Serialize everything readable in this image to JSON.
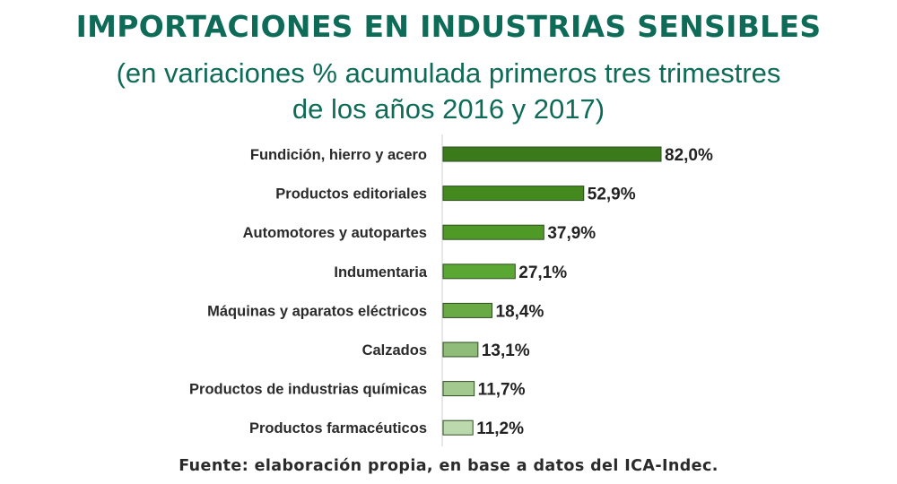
{
  "title": "IMPORTACIONES EN INDUSTRIAS SENSIBLES",
  "subtitle_lines": [
    "(en variaciones % acumulada primeros tres trimestres",
    "de los años 2016 y 2017)"
  ],
  "source": "Fuente: elaboración propia, en base a datos del ICA-Indec.",
  "chart_data": {
    "type": "bar",
    "orientation": "horizontal",
    "title": "IMPORTACIONES EN INDUSTRIAS SENSIBLES",
    "subtitle": "(en variaciones % acumulada primeros tres trimestres de los años 2016 y 2017)",
    "categories": [
      "Fundición, hierro y acero",
      "Productos editoriales",
      "Automotores y autopartes",
      "Indumentaria",
      "Máquinas y aparatos eléctricos",
      "Calzados",
      "Productos de industrias químicas",
      "Productos farmacéuticos"
    ],
    "values": [
      82.0,
      52.9,
      37.9,
      27.1,
      18.4,
      13.1,
      11.7,
      11.2
    ],
    "value_labels": [
      "82,0%",
      "52,9%",
      "37,9%",
      "27,1%",
      "18,4%",
      "13,1%",
      "11,7%",
      "11,2%"
    ],
    "bar_colors": [
      "#3b7a1a",
      "#43891d",
      "#4f9a26",
      "#5aa833",
      "#6aaa45",
      "#8fbc78",
      "#a4c98f",
      "#bcd9ad"
    ],
    "xlim": [
      0,
      82
    ],
    "grid": false,
    "legend": "none"
  }
}
